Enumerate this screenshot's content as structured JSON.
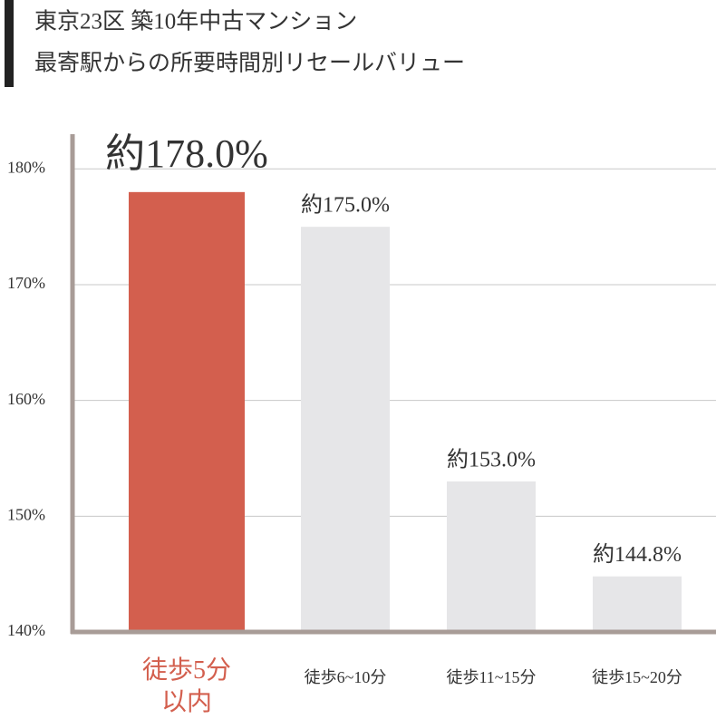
{
  "chart_data": {
    "type": "bar",
    "title": "東京23区 築10年中古マンション",
    "subtitle": "最寄駅からの所要時間別リセールバリュー",
    "categories": [
      "徒歩5分以内",
      "徒歩6~10分",
      "徒歩11~15分",
      "徒歩15~20分"
    ],
    "values": [
      178.0,
      175.0,
      153.0,
      144.8
    ],
    "value_labels": [
      "約178.0%",
      "約175.0%",
      "約153.0%",
      "約144.8%"
    ],
    "colors": [
      "#d35f4e",
      "#e6e6e8",
      "#e6e6e8",
      "#e6e6e8"
    ],
    "label_colors": [
      "#d35f4e",
      "#b5b5b5",
      "#b5b5b5",
      "#b5b5b5"
    ],
    "category_colors": [
      "#d35f4e",
      "#333333",
      "#333333",
      "#333333"
    ],
    "ylim": [
      140,
      183
    ],
    "yticks": [
      {
        "value": 140,
        "label": "140%"
      },
      {
        "value": 150,
        "label": "150%"
      },
      {
        "value": 160,
        "label": "160%"
      },
      {
        "value": 170,
        "label": "170%"
      },
      {
        "value": 180,
        "label": "180%"
      }
    ],
    "grid": true
  }
}
